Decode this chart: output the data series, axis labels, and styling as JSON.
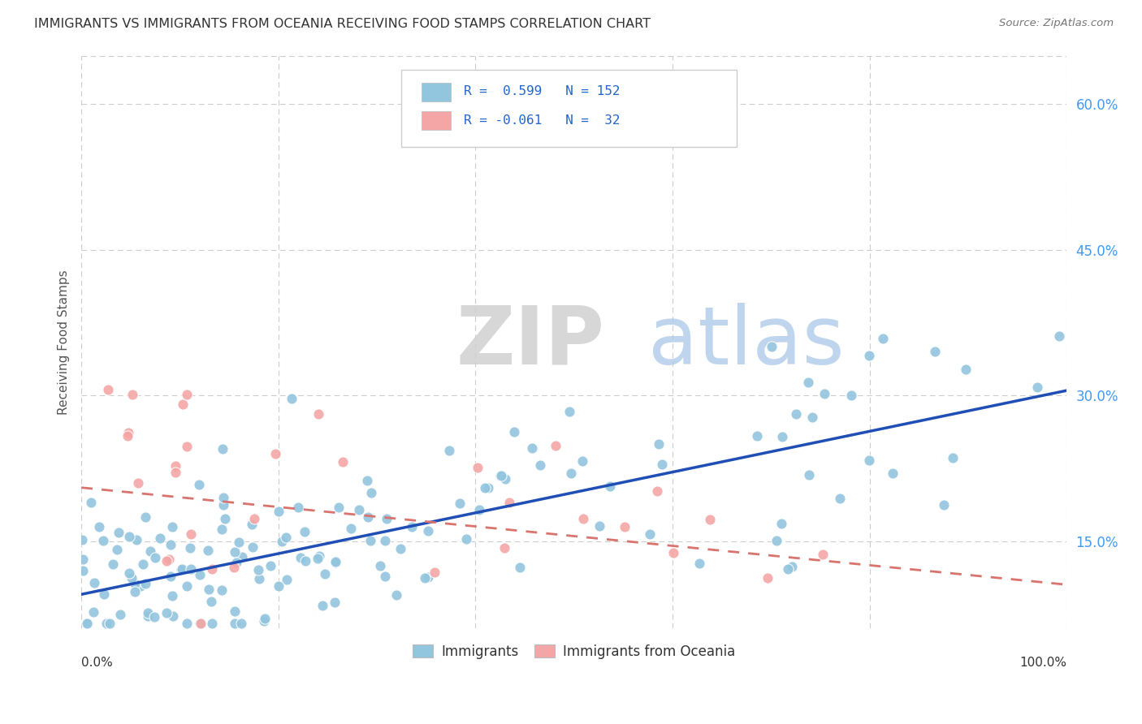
{
  "title": "IMMIGRANTS VS IMMIGRANTS FROM OCEANIA RECEIVING FOOD STAMPS CORRELATION CHART",
  "source": "Source: ZipAtlas.com",
  "ylabel": "Receiving Food Stamps",
  "ytick_vals": [
    0.15,
    0.3,
    0.45,
    0.6
  ],
  "xlim": [
    0.0,
    1.0
  ],
  "ylim": [
    0.06,
    0.65
  ],
  "legend_blue_r": "R =  0.599",
  "legend_blue_n": "N = 152",
  "legend_pink_r": "R = -0.061",
  "legend_pink_n": "N =  32",
  "watermark_zip": "ZIP",
  "watermark_atlas": "atlas",
  "bottom_legend_blue": "Immigrants",
  "bottom_legend_pink": "Immigrants from Oceania",
  "blue_color": "#92c5de",
  "pink_color": "#f4a6a6",
  "blue_line_color": "#1f4eb5",
  "pink_line_color": "#d9736e",
  "blue_trend_y0": 0.095,
  "blue_trend_y1": 0.305,
  "pink_trend_y0": 0.205,
  "pink_trend_y1": 0.105,
  "blue_scatter_seed": 77,
  "pink_scatter_seed": 99
}
